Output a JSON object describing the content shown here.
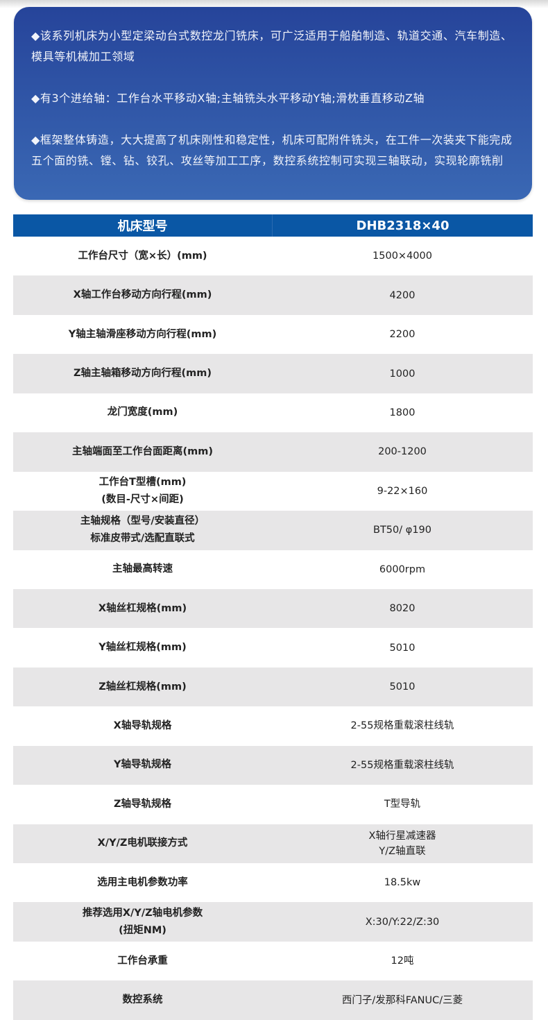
{
  "intro": [
    "◆该系列机床为小型定梁动台式数控龙门铣床，可广泛适用于船舶制造、轨道交通、汽车制造、模具等机械加工领域",
    "◆有3个进给轴：工作台水平移动X轴;主轴铣头水平移动Y轴;滑枕垂直移动Z轴",
    "◆框架整体铸造，大大提高了机床刚性和稳定性，机床可配附件铣头，在工件一次装夹下能完成五个面的铣、镗、钻、铰孔、攻丝等加工工序，数控系统控制可实现三轴联动，实现轮廓铣削"
  ],
  "table": {
    "header": {
      "label": "机床型号",
      "value": "DHB2318×40"
    },
    "rows": [
      {
        "label": [
          "工作台尺寸（宽×长）(mm)"
        ],
        "value": [
          "1500×4000"
        ]
      },
      {
        "label": [
          "X轴工作台移动方向行程(mm)"
        ],
        "value": [
          "4200"
        ]
      },
      {
        "label": [
          "Y轴主轴滑座移动方向行程(mm)"
        ],
        "value": [
          "2200"
        ]
      },
      {
        "label": [
          "Z轴主轴箱移动方向行程(mm)"
        ],
        "value": [
          "1000"
        ]
      },
      {
        "label": [
          "龙门宽度(mm)"
        ],
        "value": [
          "1800"
        ]
      },
      {
        "label": [
          "主轴端面至工作台面距离(mm)"
        ],
        "value": [
          "200-1200"
        ]
      },
      {
        "label": [
          "工作台T型槽(mm)",
          "(数目-尺寸×间距)"
        ],
        "value": [
          "9-22×160"
        ]
      },
      {
        "label": [
          "主轴规格（型号/安装直径）",
          "标准皮带式/选配直联式"
        ],
        "value": [
          "BT50/ φ190"
        ]
      },
      {
        "label": [
          "主轴最高转速"
        ],
        "value": [
          "6000rpm"
        ]
      },
      {
        "label": [
          "X轴丝杠规格(mm)"
        ],
        "value": [
          "8020"
        ]
      },
      {
        "label": [
          "Y轴丝杠规格(mm)"
        ],
        "value": [
          "5010"
        ]
      },
      {
        "label": [
          "Z轴丝杠规格(mm)"
        ],
        "value": [
          "5010"
        ]
      },
      {
        "label": [
          "X轴导轨规格"
        ],
        "value": [
          "2-55规格重载滚柱线轨"
        ]
      },
      {
        "label": [
          "Y轴导轨规格"
        ],
        "value": [
          "2-55规格重载滚柱线轨"
        ]
      },
      {
        "label": [
          "Z轴导轨规格"
        ],
        "value": [
          "T型导轨"
        ]
      },
      {
        "label": [
          "X/Y/Z电机联接方式"
        ],
        "value": [
          "X轴行星减速器",
          "Y/Z轴直联"
        ]
      },
      {
        "label": [
          "选用主电机参数功率"
        ],
        "value": [
          "18.5kw"
        ]
      },
      {
        "label": [
          "推荐选用X/Y/Z轴电机参数",
          "(扭矩NM)"
        ],
        "value": [
          "X:30/Y:22/Z:30"
        ]
      },
      {
        "label": [
          "工作台承重"
        ],
        "value": [
          "12吨"
        ]
      },
      {
        "label": [
          "数控系统"
        ],
        "value": [
          "西门子/发那科FANUC/三菱"
        ]
      }
    ]
  },
  "colors": {
    "header": "#0a57a5",
    "intro_bg": "#2c4fa2",
    "stripe": "#e7e6e7"
  }
}
